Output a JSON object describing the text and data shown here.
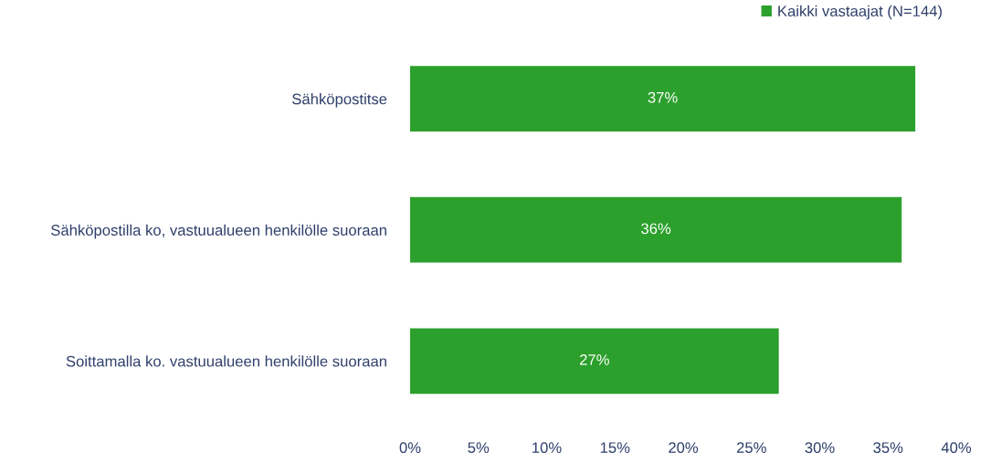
{
  "chart_data": {
    "type": "bar",
    "orientation": "horizontal",
    "categories": [
      "Sähköpostitse",
      "Sähköpostilla ko, vastuualueen henkilölle suoraan",
      "Soittamalla ko. vastuualueen henkilölle suoraan"
    ],
    "series": [
      {
        "name": "Kaikki vastaajat (N=144)",
        "color": "#2ca02c",
        "values": [
          37,
          36,
          27
        ],
        "value_labels": [
          "37%",
          "36%",
          "27%"
        ]
      }
    ],
    "xlim": [
      0,
      40
    ],
    "xticks": [
      {
        "value": 0,
        "label": "0%"
      },
      {
        "value": 5,
        "label": "5%"
      },
      {
        "value": 10,
        "label": "10%"
      },
      {
        "value": 15,
        "label": "15%"
      },
      {
        "value": 20,
        "label": "20%"
      },
      {
        "value": 25,
        "label": "25%"
      },
      {
        "value": 30,
        "label": "30%"
      },
      {
        "value": 35,
        "label": "35%"
      },
      {
        "value": 40,
        "label": "40%"
      }
    ],
    "grid": false,
    "legend": "top right"
  }
}
